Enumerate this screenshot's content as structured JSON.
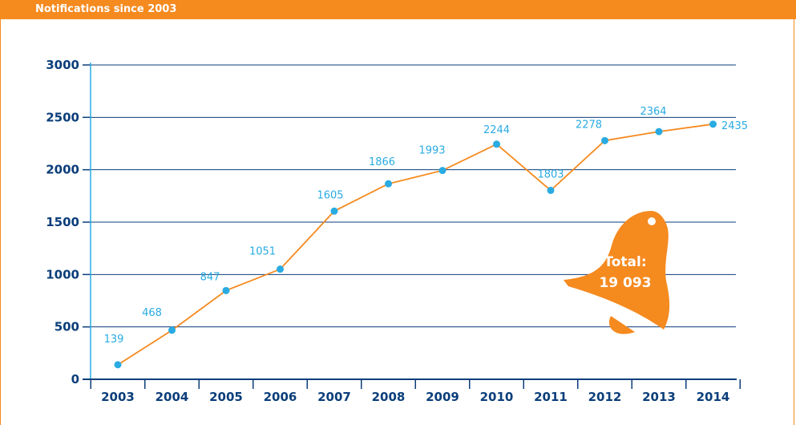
{
  "header": {
    "title": "Notifications since 2003"
  },
  "callout": {
    "line1": "Total:",
    "line2": "19 093",
    "color": "#f58a1f"
  },
  "colors": {
    "accent": "#f58a1f",
    "axis": "#0b3e7a",
    "marker": "#29abe2",
    "grid": "#0b3e7a"
  },
  "chart_data": {
    "type": "line",
    "title": "Notifications since 2003",
    "xlabel": "",
    "ylabel": "",
    "categories": [
      "2003",
      "2004",
      "2005",
      "2006",
      "2007",
      "2008",
      "2009",
      "2010",
      "2011",
      "2012",
      "2013",
      "2014"
    ],
    "values": [
      139,
      468,
      847,
      1051,
      1605,
      1866,
      1993,
      2244,
      1803,
      2278,
      2364,
      2435
    ],
    "labels": [
      "139",
      "468",
      "847",
      "1051",
      "1605",
      "1866",
      "1993",
      "2244",
      "1803",
      "2278",
      "2364",
      "2435"
    ],
    "ylim": [
      0,
      3000
    ],
    "yticks": [
      0,
      500,
      1000,
      1500,
      2000,
      2500,
      3000
    ],
    "ytick_labels": [
      "0",
      "500",
      "1000",
      "1500",
      "2000",
      "2500",
      "3000"
    ],
    "grid": true,
    "legend": "none",
    "line_color": "#f58a1f",
    "marker_color": "#29abe2"
  }
}
